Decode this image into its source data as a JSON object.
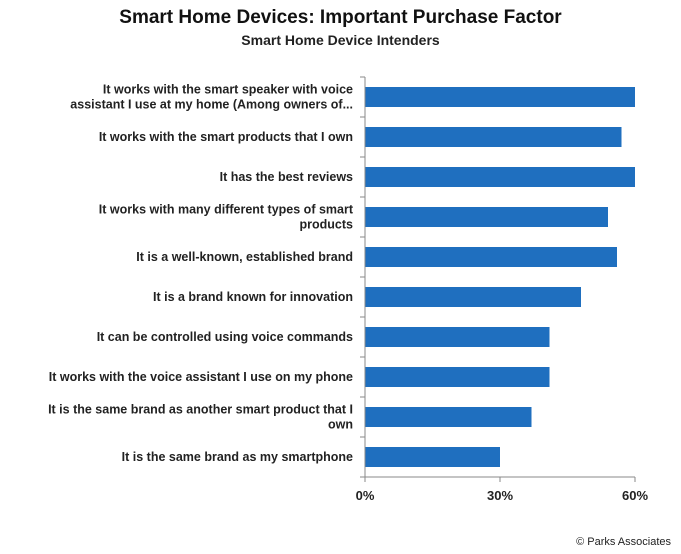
{
  "chart_data": {
    "type": "bar",
    "orientation": "horizontal",
    "title": "Smart Home Devices: Important Purchase Factor",
    "subtitle": "Smart Home Device Intenders",
    "categories": [
      [
        "It works with the smart speaker with voice",
        "assistant I use at my home (Among owners of..."
      ],
      [
        "It works with the smart products that I own"
      ],
      [
        "It has the best reviews"
      ],
      [
        "It works with many different types of smart",
        "products"
      ],
      [
        "It is a well-known, established brand"
      ],
      [
        "It is a brand known for innovation"
      ],
      [
        "It can be controlled using voice commands"
      ],
      [
        "It works with the voice assistant I use on my phone"
      ],
      [
        "It is the same brand as another smart product that I",
        "own"
      ],
      [
        "It is the same brand as my smartphone"
      ]
    ],
    "values": [
      60,
      57,
      60,
      54,
      56,
      48,
      41,
      41,
      37,
      30
    ],
    "xlim": [
      0,
      60
    ],
    "ticks": [
      "0%",
      "30%",
      "60%"
    ],
    "tick_values": [
      0,
      30,
      60
    ],
    "bar_color": "#1f6fbf",
    "grid": false
  },
  "footer": {
    "source": "© Parks Associates"
  }
}
